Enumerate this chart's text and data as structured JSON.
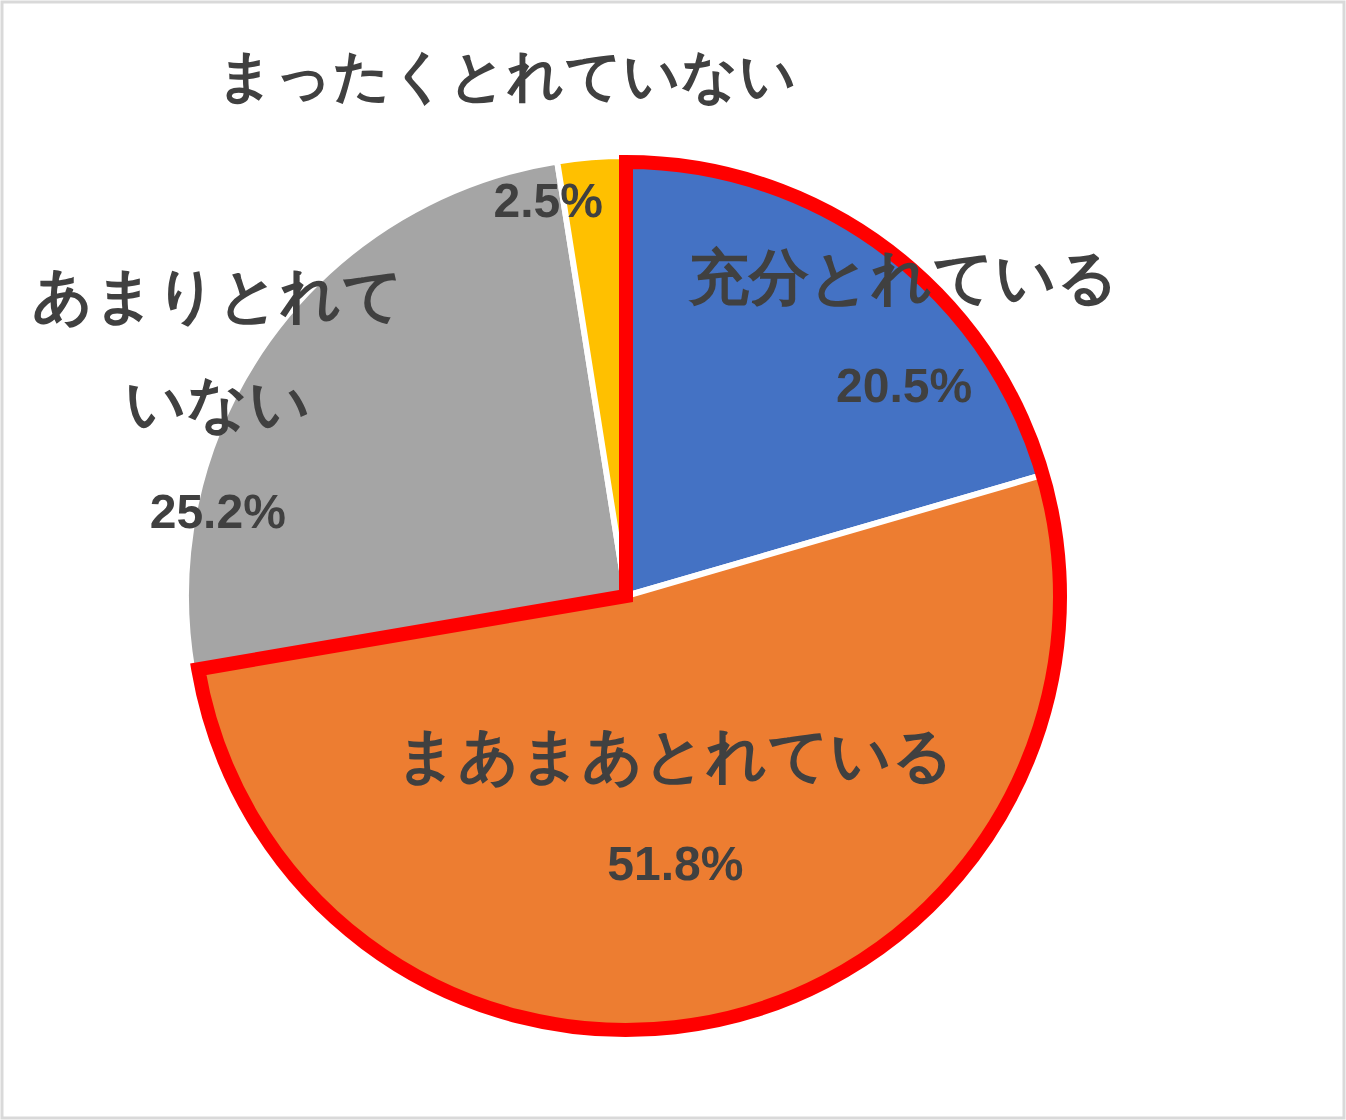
{
  "chart_data": {
    "type": "pie",
    "categories": [
      "充分とれている",
      "まあまあとれている",
      "あまりとれていない",
      "まったくとれていない"
    ],
    "values": [
      20.5,
      51.8,
      25.2,
      2.5
    ],
    "colors": [
      "#4472c4",
      "#ed7d31",
      "#a5a5a5",
      "#ffc000"
    ],
    "value_labels": [
      "20.5%",
      "51.8%",
      "25.2%",
      "2.5%"
    ]
  }
}
